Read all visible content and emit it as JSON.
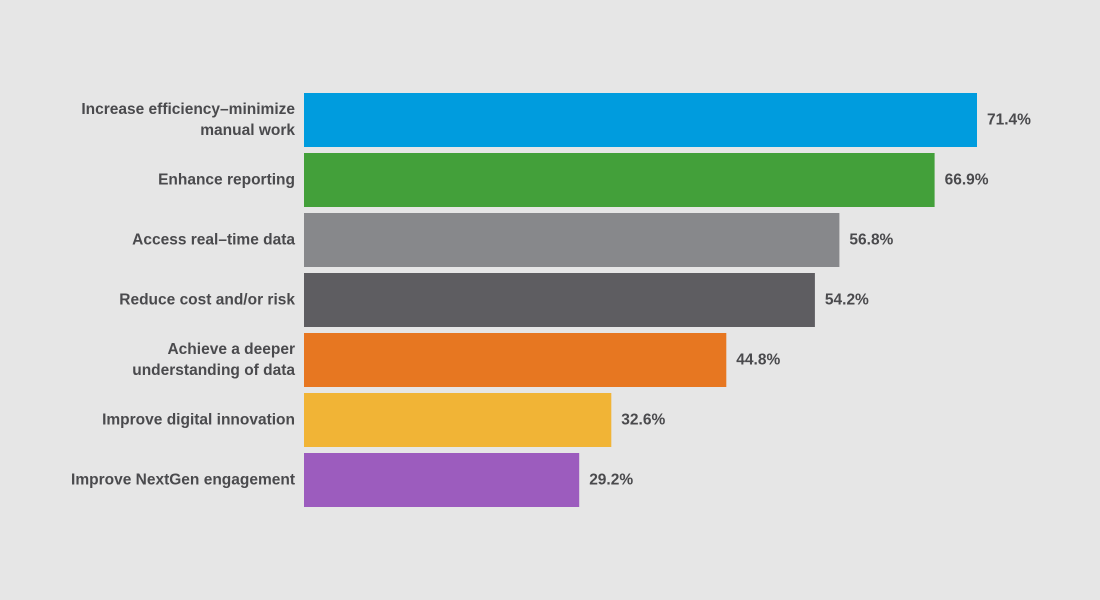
{
  "chart_data": {
    "type": "bar",
    "orientation": "horizontal",
    "categories": [
      "Increase efficiency–minimize manual work",
      "Enhance reporting",
      "Access real–time data",
      "Reduce cost and/or risk",
      "Achieve a deeper understanding of data",
      "Improve digital innovation",
      "Improve NextGen engagement"
    ],
    "category_lines": [
      [
        "Increase efficiency–minimize",
        "manual work"
      ],
      [
        "Enhance reporting"
      ],
      [
        "Access real–time data"
      ],
      [
        "Reduce cost and/or risk"
      ],
      [
        "Achieve a deeper",
        "understanding of data"
      ],
      [
        "Improve digital innovation"
      ],
      [
        "Improve NextGen engagement"
      ]
    ],
    "values": [
      71.4,
      66.9,
      56.8,
      54.2,
      44.8,
      32.6,
      29.2
    ],
    "value_labels": [
      "71.4%",
      "66.9%",
      "56.8%",
      "54.2%",
      "44.8%",
      "32.6%",
      "29.2%"
    ],
    "colors": [
      "#009cde",
      "#43a03a",
      "#87888b",
      "#5e5d61",
      "#e77721",
      "#f1b436",
      "#9c5cbe"
    ],
    "title": "",
    "xlabel": "",
    "ylabel": "",
    "xlim": [
      0,
      100
    ],
    "grid": false,
    "legend": "none"
  }
}
